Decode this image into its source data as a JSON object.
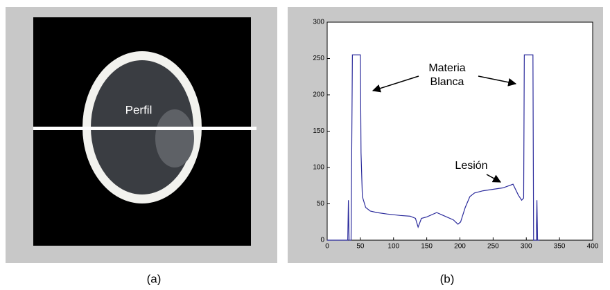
{
  "panel_a": {
    "label": "Perfil",
    "caption": "(a)"
  },
  "chart_data": {
    "type": "line",
    "caption": "(b)",
    "annotations": [
      "Materia Blanca",
      "Lesión"
    ],
    "x": [
      0,
      30,
      31,
      32,
      33,
      34,
      36,
      38,
      40,
      50,
      51,
      53,
      58,
      65,
      75,
      90,
      110,
      125,
      133,
      137,
      142,
      150,
      165,
      180,
      190,
      197,
      201,
      208,
      215,
      222,
      235,
      250,
      265,
      280,
      288,
      293,
      296,
      297,
      310,
      311,
      314,
      315,
      316,
      317,
      318,
      320
    ],
    "series": [
      {
        "color": "#2b2b9c",
        "values": [
          0,
          0,
          0,
          55,
          0,
          0,
          0,
          255,
          255,
          255,
          120,
          60,
          45,
          40,
          38,
          36,
          34,
          33,
          30,
          18,
          30,
          32,
          38,
          32,
          28,
          22,
          25,
          45,
          60,
          65,
          68,
          70,
          72,
          77,
          62,
          55,
          58,
          255,
          255,
          0,
          0,
          0,
          55,
          0,
          0,
          0
        ]
      }
    ],
    "xlim": [
      0,
      400
    ],
    "ylim": [
      0,
      300
    ],
    "xticks": [
      0,
      50,
      100,
      150,
      200,
      250,
      300,
      350,
      400
    ],
    "yticks": [
      0,
      50,
      100,
      150,
      200,
      250,
      300
    ]
  }
}
